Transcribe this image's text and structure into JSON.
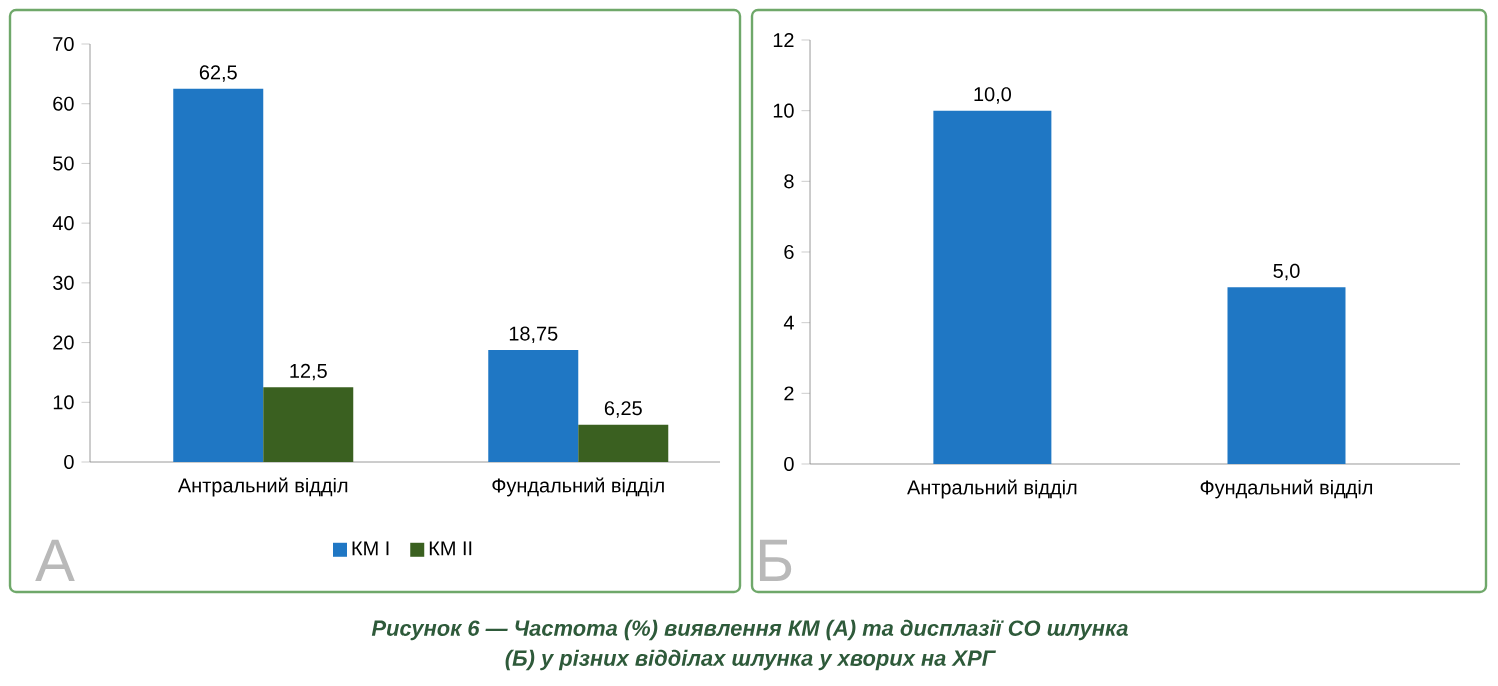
{
  "chart_data": [
    {
      "type": "bar",
      "categories": [
        "Антральний відділ",
        "Фундальний відділ"
      ],
      "series": [
        {
          "name": "КМ I",
          "color": "#1f77c4",
          "values": [
            62.5,
            18.75
          ],
          "value_labels": [
            "62,5",
            "18,75"
          ]
        },
        {
          "name": "КМ II",
          "color": "#3a6020",
          "values": [
            12.5,
            6.25
          ],
          "value_labels": [
            "12,5",
            "6,25"
          ]
        }
      ],
      "ylim": [
        0,
        70
      ],
      "yticks": [
        0,
        10,
        20,
        30,
        40,
        50,
        60,
        70
      ],
      "legend": "bottom",
      "annotations": [
        "А",
        "Рисунок 6 — Частота (%) виявлення КМ (А) та дисплазії СО шлунка",
        "(Б) у різних відділах шлунка у хворих на ХРГ"
      ]
    },
    {
      "type": "bar",
      "categories": [
        "Антральний відділ",
        "Фундальний відділ"
      ],
      "color": "#1f77c4",
      "values": [
        10,
        5
      ],
      "value_labels": [
        "10,0",
        "5,0"
      ],
      "ylim": [
        0,
        12
      ],
      "yticks": [
        0,
        2,
        4,
        6,
        8,
        10,
        12
      ],
      "annotations": [
        "Б"
      ]
    }
  ]
}
